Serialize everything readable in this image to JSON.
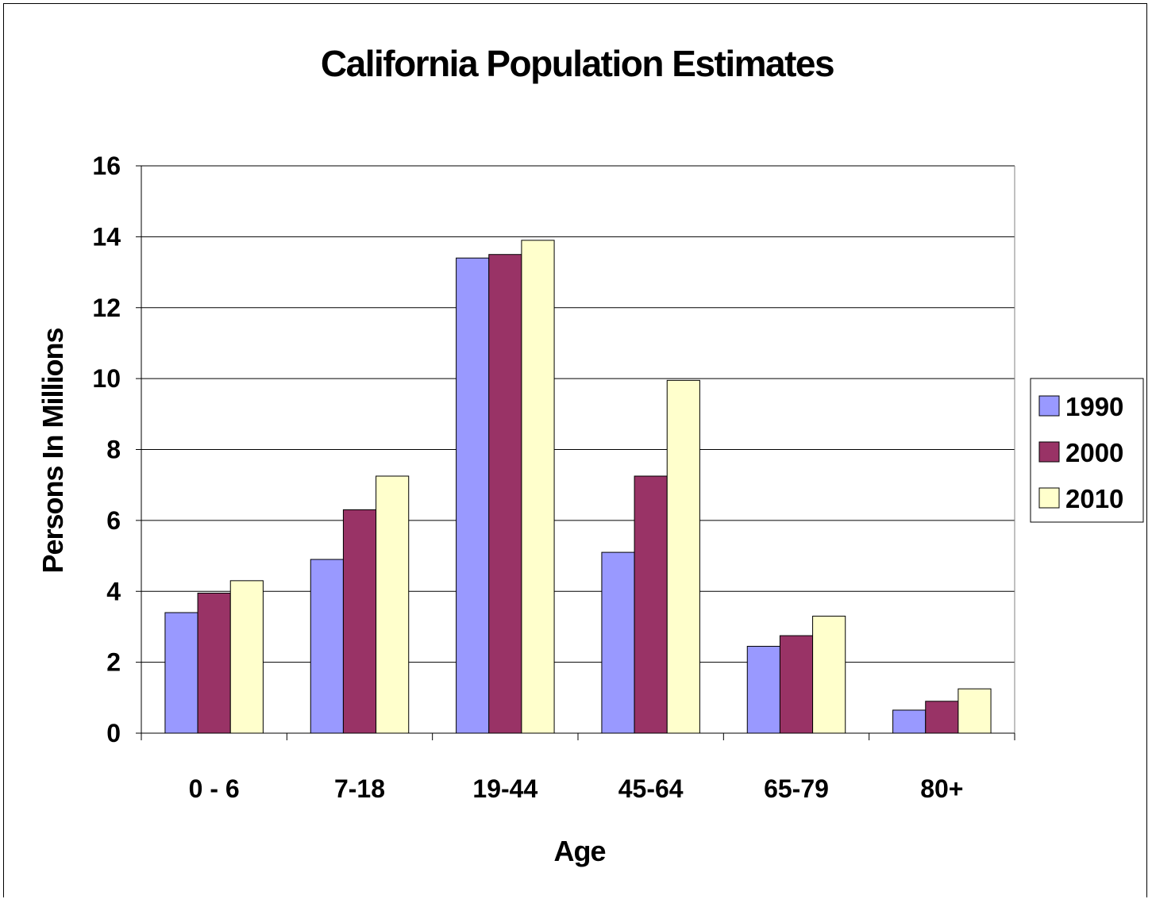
{
  "chart_data": {
    "type": "bar",
    "title": "California Population Estimates",
    "xlabel": "Age",
    "ylabel": "Persons In Millions",
    "categories": [
      "0 - 6",
      "7-18",
      "19-44",
      "45-64",
      "65-79",
      "80+"
    ],
    "series": [
      {
        "name": "1990",
        "color": "#9999ff",
        "values": [
          3.4,
          4.9,
          13.4,
          5.1,
          2.45,
          0.65
        ]
      },
      {
        "name": "2000",
        "color": "#993366",
        "values": [
          3.95,
          6.3,
          13.5,
          7.25,
          2.75,
          0.9
        ]
      },
      {
        "name": "2010",
        "color": "#ffffcc",
        "values": [
          4.3,
          7.25,
          13.9,
          9.95,
          3.3,
          1.25
        ]
      }
    ],
    "ylim": [
      0,
      16
    ],
    "yticks": [
      "0",
      "2",
      "4",
      "6",
      "8",
      "10",
      "12",
      "14",
      "16"
    ],
    "grid": true,
    "legend_position": "right"
  }
}
